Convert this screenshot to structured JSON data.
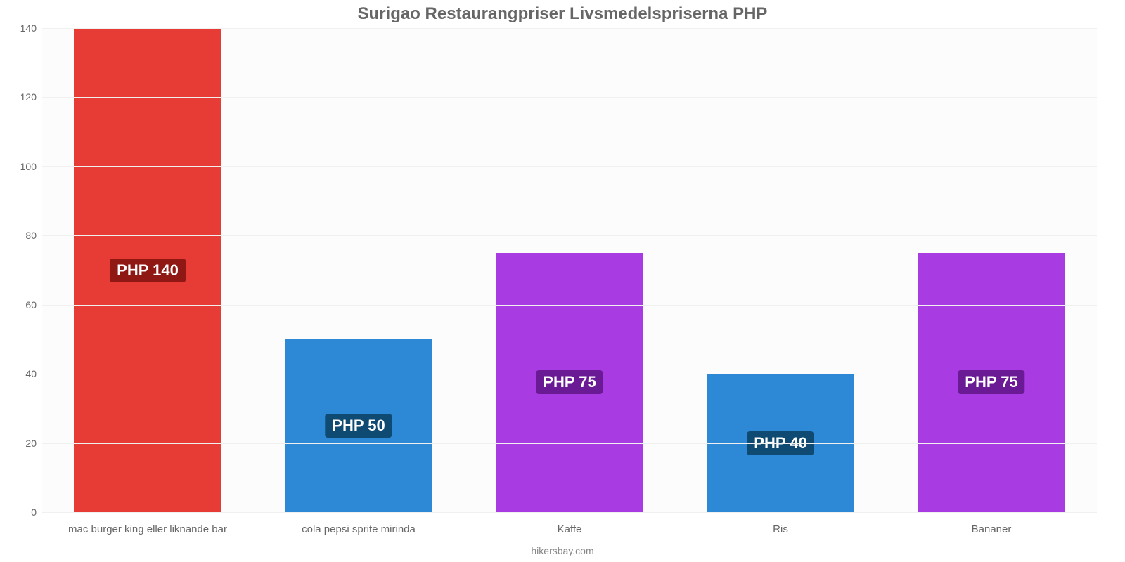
{
  "chart": {
    "type": "bar",
    "title": "Surigao Restaurangpriser Livsmedelspriserna PHP",
    "title_fontsize": 24,
    "title_color": "#666666",
    "background_color": "#fcfcfc",
    "grid_color": "#f0f0f0",
    "axis_line_color": "#dcdcdc",
    "ylim": [
      0,
      140
    ],
    "ytick_step": 20,
    "yticks": [
      0,
      20,
      40,
      60,
      80,
      100,
      120,
      140
    ],
    "bar_width_pct": 70,
    "label_fontsize": 22,
    "xlabel_fontsize": 15,
    "xlabel_color": "#666666",
    "ytick_fontsize": 14,
    "ytick_color": "#666666",
    "categories": [
      "mac burger king eller liknande bar",
      "cola pepsi sprite mirinda",
      "Kaffe",
      "Ris",
      "Bananer"
    ],
    "values": [
      140,
      50,
      75,
      40,
      75
    ],
    "value_labels": [
      "PHP 140",
      "PHP 50",
      "PHP 75",
      "PHP 40",
      "PHP 75"
    ],
    "bar_colors": [
      "#e73c36",
      "#2d89d6",
      "#a93be3",
      "#2d89d6",
      "#a93be3"
    ],
    "label_bg_colors": [
      "#8f1714",
      "#0e4a72",
      "#6a1a94",
      "#0e4a72",
      "#6a1a94"
    ],
    "footer": "hikersbay.com",
    "footer_color": "#888888",
    "footer_fontsize": 14
  }
}
